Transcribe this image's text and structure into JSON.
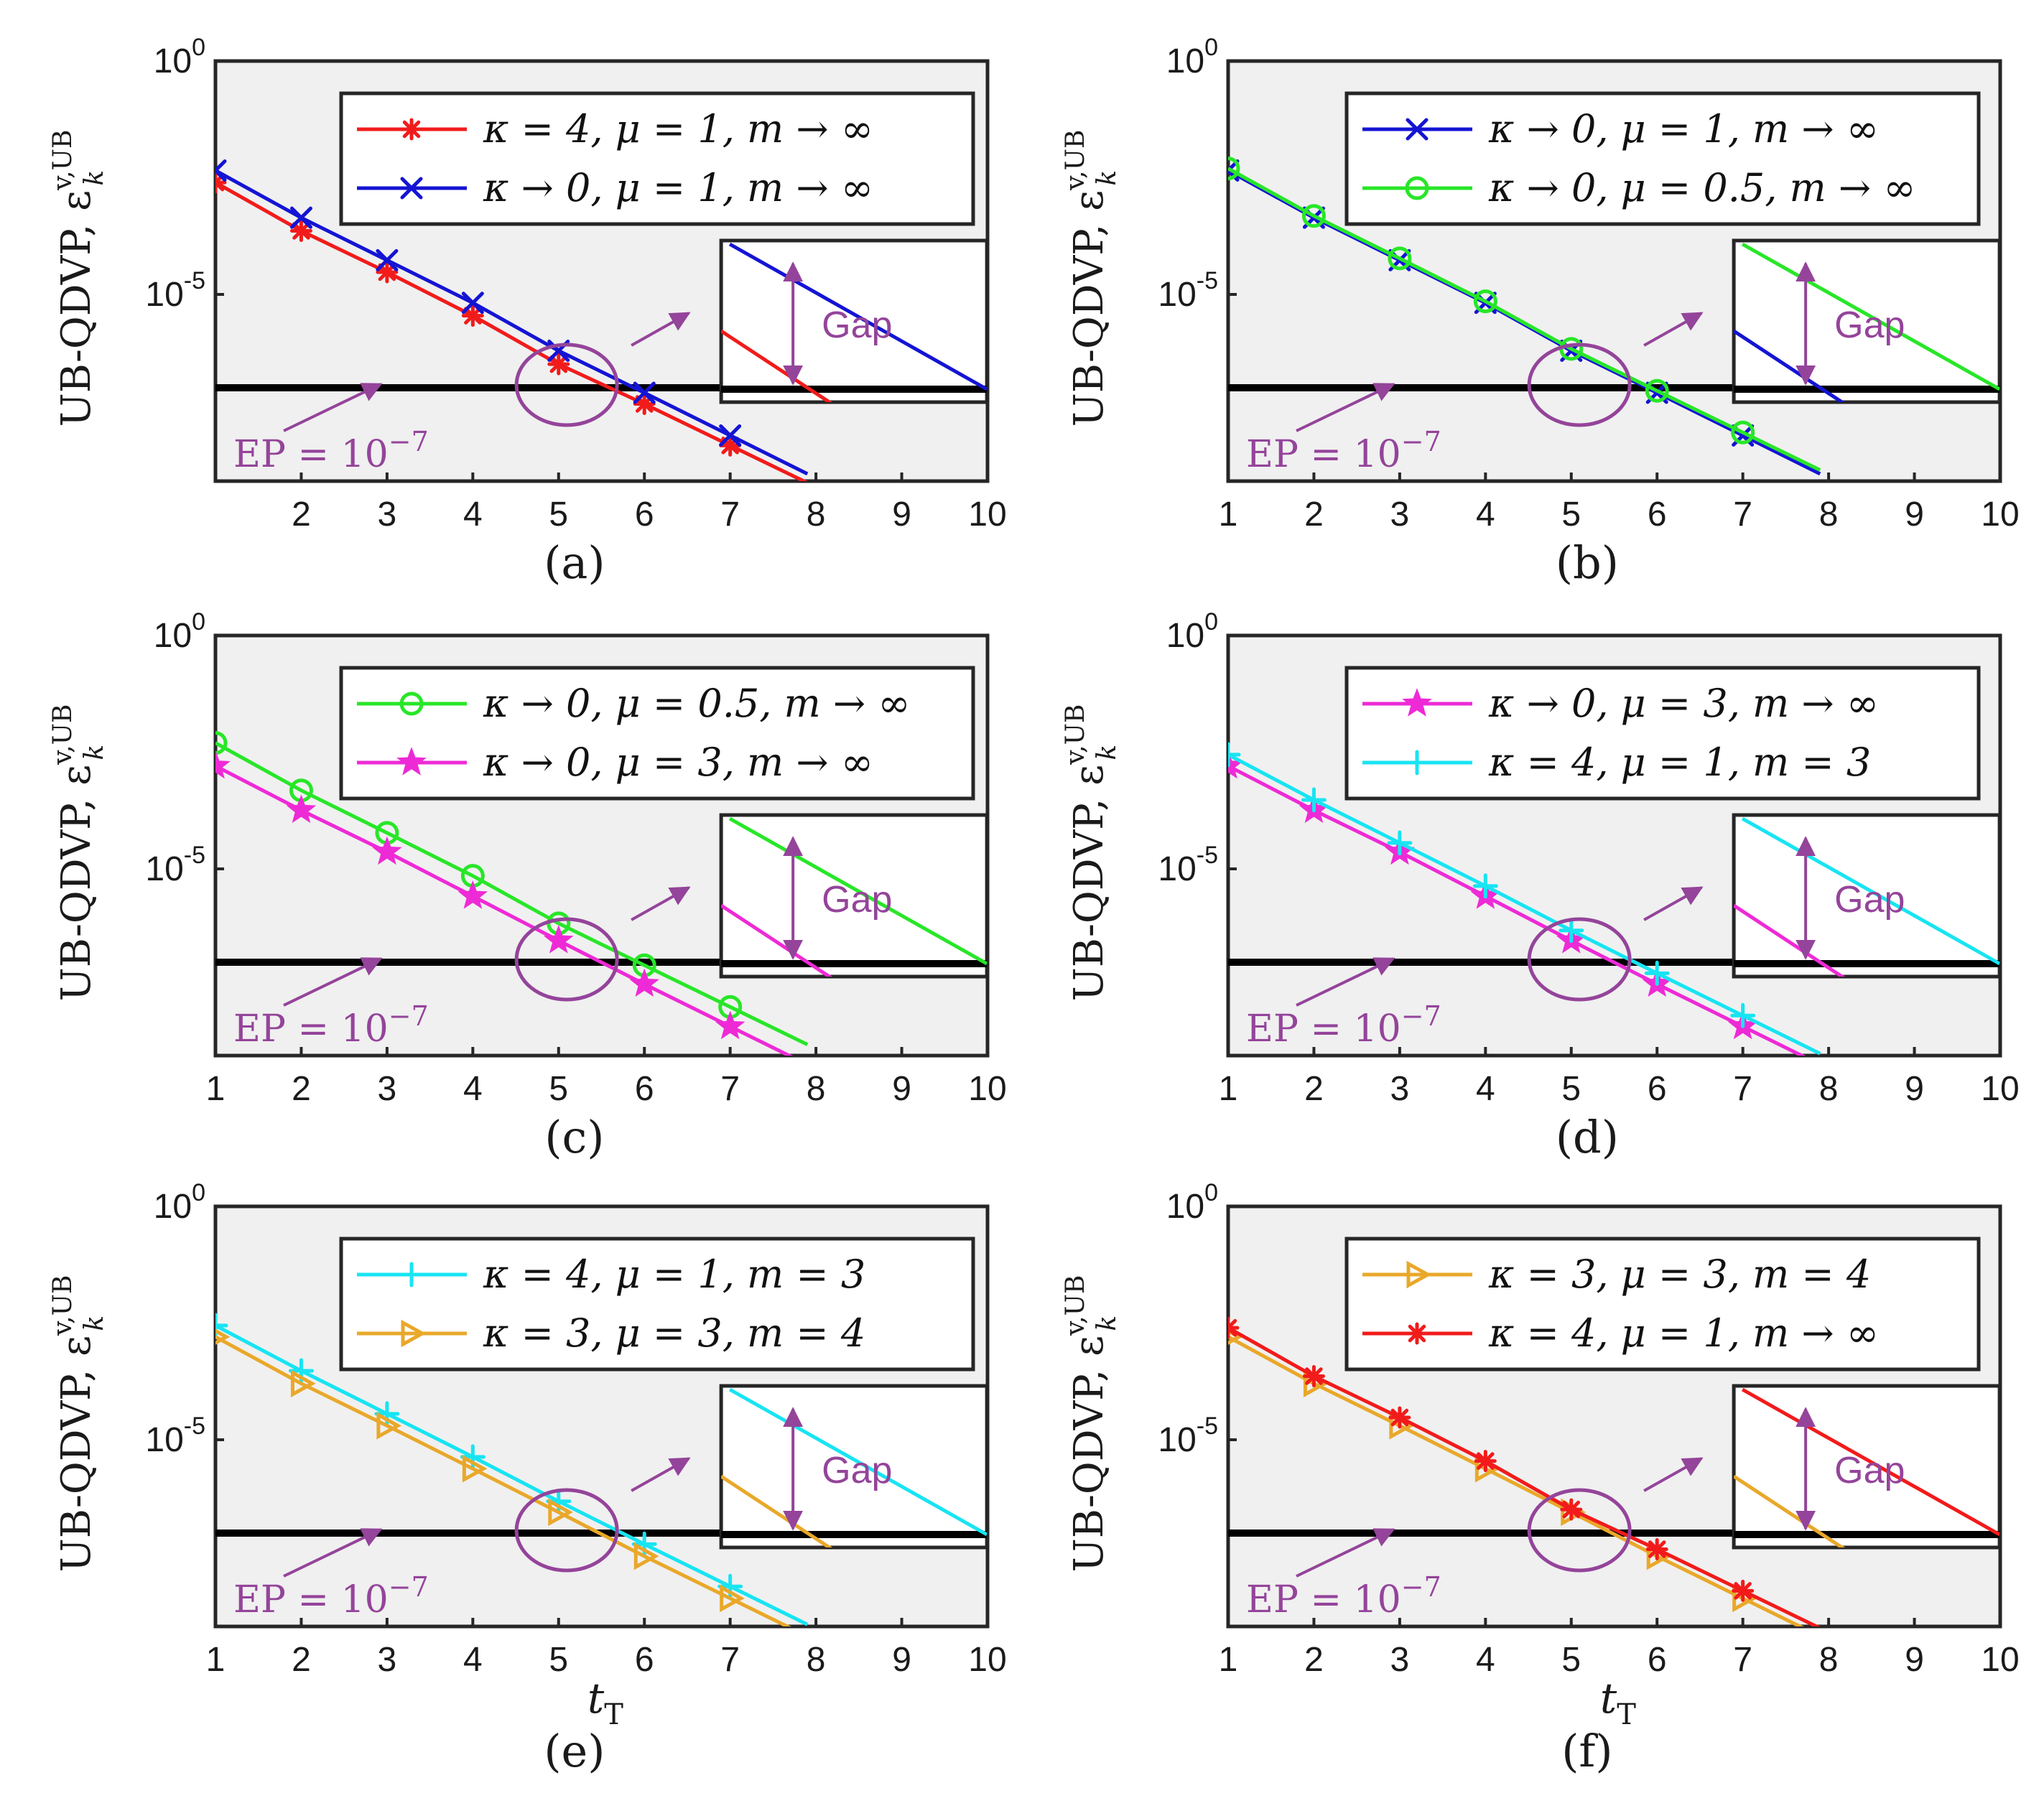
{
  "figure": {
    "y_label": "UB-QDVP, ε",
    "y_label_super": "v,UB",
    "y_label_sub": "k",
    "x_label": "t",
    "x_label_sub": "T",
    "ep_label": "EP = 10",
    "ep_exp": "−7",
    "gap_label": "Gap",
    "colors": {
      "annot": "#94449a",
      "axis_bg": "#f0f0f0",
      "red": "#f21b1b",
      "blue": "#1414d4",
      "green": "#28e628",
      "magenta": "#ee2ad6",
      "cyan": "#18e4f2",
      "orange": "#e9a82a"
    }
  },
  "chart_data": [
    {
      "type": "line",
      "panel": "(a)",
      "yscale": "log",
      "xlim": [
        1,
        10
      ],
      "ylim": [
        1e-09,
        1
      ],
      "xticks": [
        "2",
        "3",
        "4",
        "5",
        "6",
        "7",
        "8",
        "9",
        "10"
      ],
      "yticks": [
        {
          "base": "10",
          "exp": "0"
        },
        {
          "base": "10",
          "exp": "-5"
        }
      ],
      "ep_level": 1e-07,
      "x": [
        1,
        2,
        3,
        4,
        5,
        6,
        7
      ],
      "series": [
        {
          "name": "κ = 4, μ = 1, m → ∞",
          "color": "red",
          "marker": "asterisk",
          "values": [
            0.0025,
            0.00023,
            3e-05,
            3.5e-06,
            3.2e-07,
            4.5e-08,
            5.8e-09
          ]
        },
        {
          "name": "κ → 0, μ = 1, m → ∞",
          "color": "blue",
          "marker": "x",
          "values": [
            0.0045,
            0.00044,
            5.4e-05,
            6.6e-06,
            6.2e-07,
            7.8e-08,
            9.5e-09
          ]
        }
      ],
      "inset_lower": "red",
      "inset_upper": "blue"
    },
    {
      "type": "line",
      "panel": "(b)",
      "yscale": "log",
      "xlim": [
        1,
        10
      ],
      "ylim": [
        1e-09,
        1
      ],
      "xticks": [
        "1",
        "2",
        "3",
        "4",
        "5",
        "6",
        "7",
        "8",
        "9",
        "10"
      ],
      "yticks": [
        {
          "base": "10",
          "exp": "0"
        },
        {
          "base": "10",
          "exp": "-5"
        }
      ],
      "ep_level": 1e-07,
      "x": [
        1,
        2,
        3,
        4,
        5,
        6,
        7
      ],
      "series": [
        {
          "name": "κ → 0, μ = 1, m → ∞",
          "color": "blue",
          "marker": "x",
          "values": [
            0.0045,
            0.00044,
            5.4e-05,
            6.6e-06,
            6.2e-07,
            7.8e-08,
            9.5e-09
          ]
        },
        {
          "name": "κ → 0, μ = 0.5, m → ∞",
          "color": "green",
          "marker": "circle",
          "values": [
            0.005,
            0.00048,
            5.9e-05,
            7.1e-06,
            6.8e-07,
            8.6e-08,
            1.1e-08
          ]
        }
      ],
      "inset_lower": "blue",
      "inset_upper": "green"
    },
    {
      "type": "line",
      "panel": "(c)",
      "yscale": "log",
      "xlim": [
        1,
        10
      ],
      "ylim": [
        1e-09,
        1
      ],
      "xticks": [
        "1",
        "2",
        "3",
        "4",
        "5",
        "6",
        "7",
        "8",
        "9",
        "10"
      ],
      "yticks": [
        {
          "base": "10",
          "exp": "0"
        },
        {
          "base": "10",
          "exp": "-5"
        }
      ],
      "ep_level": 1e-07,
      "x": [
        1,
        2,
        3,
        4,
        5,
        6,
        7
      ],
      "series": [
        {
          "name": "κ → 0, μ = 0.5, m → ∞",
          "color": "green",
          "marker": "circle",
          "values": [
            0.005,
            0.00048,
            5.9e-05,
            7.1e-06,
            6.8e-07,
            8.6e-08,
            1.1e-08
          ]
        },
        {
          "name": "κ → 0, μ = 3, m → ∞",
          "color": "magenta",
          "marker": "star",
          "values": [
            0.0016,
            0.00018,
            2.3e-05,
            2.6e-06,
            2.9e-07,
            3.4e-08,
            4.2e-09
          ]
        }
      ],
      "inset_lower": "magenta",
      "inset_upper": "green"
    },
    {
      "type": "line",
      "panel": "(d)",
      "yscale": "log",
      "xlim": [
        1,
        10
      ],
      "ylim": [
        1e-09,
        1
      ],
      "xticks": [
        "1",
        "2",
        "3",
        "4",
        "5",
        "6",
        "7",
        "8",
        "9",
        "10"
      ],
      "yticks": [
        {
          "base": "10",
          "exp": "0"
        },
        {
          "base": "10",
          "exp": "-5"
        }
      ],
      "ep_level": 1e-07,
      "x": [
        1,
        2,
        3,
        4,
        5,
        6,
        7
      ],
      "series": [
        {
          "name": "κ → 0, μ = 3, m → ∞",
          "color": "magenta",
          "marker": "star",
          "values": [
            0.0016,
            0.00018,
            2.3e-05,
            2.6e-06,
            2.9e-07,
            3.4e-08,
            4.2e-09
          ]
        },
        {
          "name": "κ = 4, μ = 1, m = 3",
          "color": "cyan",
          "marker": "plus",
          "values": [
            0.0028,
            0.0003,
            3.6e-05,
            4.3e-06,
            4.8e-07,
            5.8e-08,
            7.2e-09
          ]
        }
      ],
      "inset_lower": "magenta",
      "inset_upper": "cyan"
    },
    {
      "type": "line",
      "panel": "(e)",
      "yscale": "log",
      "xlim": [
        1,
        10
      ],
      "ylim": [
        1e-09,
        1
      ],
      "xticks": [
        "1",
        "2",
        "3",
        "4",
        "5",
        "6",
        "7",
        "8",
        "9",
        "10"
      ],
      "yticks": [
        {
          "base": "10",
          "exp": "0"
        },
        {
          "base": "10",
          "exp": "-5"
        }
      ],
      "ep_level": 1e-07,
      "x": [
        1,
        2,
        3,
        4,
        5,
        6,
        7
      ],
      "series": [
        {
          "name": "κ = 4, μ = 1, m = 3",
          "color": "cyan",
          "marker": "plus",
          "values": [
            0.0028,
            0.0003,
            3.6e-05,
            4.3e-06,
            4.8e-07,
            5.8e-08,
            7.2e-09
          ]
        },
        {
          "name": "κ = 3, μ = 3, m = 4",
          "color": "orange",
          "marker": "triangle-right",
          "values": [
            0.0016,
            0.00016,
            2e-05,
            2.4e-06,
            2.8e-07,
            3.2e-08,
            4e-09
          ]
        }
      ],
      "inset_lower": "orange",
      "inset_upper": "cyan"
    },
    {
      "type": "line",
      "panel": "(f)",
      "yscale": "log",
      "xlim": [
        1,
        10
      ],
      "ylim": [
        1e-09,
        1
      ],
      "xticks": [
        "1",
        "2",
        "3",
        "4",
        "5",
        "6",
        "7",
        "8",
        "9",
        "10"
      ],
      "yticks": [
        {
          "base": "10",
          "exp": "0"
        },
        {
          "base": "10",
          "exp": "-5"
        }
      ],
      "ep_level": 1e-07,
      "x": [
        1,
        2,
        3,
        4,
        5,
        6,
        7
      ],
      "series": [
        {
          "name": "κ = 3, μ = 3, m = 4",
          "color": "orange",
          "marker": "triangle-right",
          "values": [
            0.0016,
            0.00016,
            2e-05,
            2.4e-06,
            2.8e-07,
            3.2e-08,
            4e-09
          ]
        },
        {
          "name": "κ = 4, μ = 1, m → ∞",
          "color": "red",
          "marker": "asterisk",
          "values": [
            0.0025,
            0.00023,
            3e-05,
            3.5e-06,
            3.2e-07,
            4.5e-08,
            5.8e-09
          ]
        }
      ],
      "inset_lower": "orange",
      "inset_upper": "red"
    }
  ]
}
